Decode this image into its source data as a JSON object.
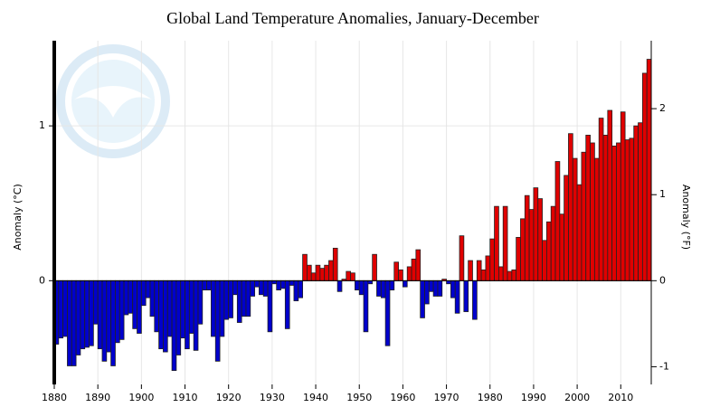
{
  "chart_data": {
    "type": "bar",
    "title": "Global Land Temperature Anomalies, January-December",
    "y_label": "Anomaly (°C)",
    "y2_label": "Anomaly (°F)",
    "x": [
      1880,
      1881,
      1882,
      1883,
      1884,
      1885,
      1886,
      1887,
      1888,
      1889,
      1890,
      1891,
      1892,
      1893,
      1894,
      1895,
      1896,
      1897,
      1898,
      1899,
      1900,
      1901,
      1902,
      1903,
      1904,
      1905,
      1906,
      1907,
      1908,
      1909,
      1910,
      1911,
      1912,
      1913,
      1914,
      1915,
      1916,
      1917,
      1918,
      1919,
      1920,
      1921,
      1922,
      1923,
      1924,
      1925,
      1926,
      1927,
      1928,
      1929,
      1930,
      1931,
      1932,
      1933,
      1934,
      1935,
      1936,
      1937,
      1938,
      1939,
      1940,
      1941,
      1942,
      1943,
      1944,
      1945,
      1946,
      1947,
      1948,
      1949,
      1950,
      1951,
      1952,
      1953,
      1954,
      1955,
      1956,
      1957,
      1958,
      1959,
      1960,
      1961,
      1962,
      1963,
      1964,
      1965,
      1966,
      1967,
      1968,
      1969,
      1970,
      1971,
      1972,
      1973,
      1974,
      1975,
      1976,
      1977,
      1978,
      1979,
      1980,
      1981,
      1982,
      1983,
      1984,
      1985,
      1986,
      1987,
      1988,
      1989,
      1990,
      1991,
      1992,
      1993,
      1994,
      1995,
      1996,
      1997,
      1998,
      1999,
      2000,
      2001,
      2002,
      2003,
      2004,
      2005,
      2006,
      2007,
      2008,
      2009,
      2010,
      2011,
      2012,
      2013,
      2014,
      2015,
      2016
    ],
    "values": [
      -0.41,
      -0.37,
      -0.36,
      -0.55,
      -0.55,
      -0.48,
      -0.44,
      -0.43,
      -0.42,
      -0.28,
      -0.44,
      -0.52,
      -0.46,
      -0.55,
      -0.4,
      -0.38,
      -0.22,
      -0.21,
      -0.31,
      -0.34,
      -0.16,
      -0.11,
      -0.23,
      -0.33,
      -0.44,
      -0.46,
      -0.36,
      -0.58,
      -0.48,
      -0.37,
      -0.44,
      -0.34,
      -0.45,
      -0.28,
      -0.06,
      -0.06,
      -0.36,
      -0.52,
      -0.36,
      -0.25,
      -0.24,
      -0.09,
      -0.27,
      -0.23,
      -0.23,
      -0.1,
      -0.04,
      -0.09,
      -0.1,
      -0.33,
      -0.02,
      -0.06,
      -0.05,
      -0.31,
      -0.03,
      -0.13,
      -0.11,
      0.17,
      0.1,
      0.05,
      0.1,
      0.08,
      0.1,
      0.13,
      0.21,
      -0.07,
      0.01,
      0.06,
      0.05,
      -0.06,
      -0.09,
      -0.33,
      -0.02,
      0.17,
      -0.1,
      -0.11,
      -0.42,
      -0.06,
      0.12,
      0.07,
      -0.04,
      0.09,
      0.14,
      0.2,
      -0.24,
      -0.15,
      -0.07,
      -0.1,
      -0.1,
      0.01,
      -0.02,
      -0.11,
      -0.21,
      0.29,
      -0.2,
      0.13,
      -0.25,
      0.13,
      0.07,
      0.16,
      0.27,
      0.48,
      0.09,
      0.48,
      0.06,
      0.07,
      0.28,
      0.4,
      0.55,
      0.46,
      0.6,
      0.53,
      0.26,
      0.38,
      0.48,
      0.77,
      0.43,
      0.68,
      0.95,
      0.79,
      0.62,
      0.83,
      0.94,
      0.89,
      0.79,
      1.05,
      0.94,
      1.1,
      0.87,
      0.89,
      1.09,
      0.91,
      0.92,
      1.0,
      1.02,
      1.34,
      1.43
    ],
    "positive_color": "#e00000",
    "negative_color": "#0000cc",
    "xlim": [
      1880,
      2017
    ],
    "xticks": [
      1880,
      1890,
      1900,
      1910,
      1920,
      1930,
      1940,
      1950,
      1960,
      1970,
      1980,
      1990,
      2000,
      2010
    ],
    "ylim": [
      -0.67,
      1.55
    ],
    "yticks": [
      0,
      1
    ],
    "y2lim": [
      -1.206,
      2.79
    ],
    "y2ticks": [
      -1,
      0,
      1,
      2
    ],
    "grid": true
  }
}
